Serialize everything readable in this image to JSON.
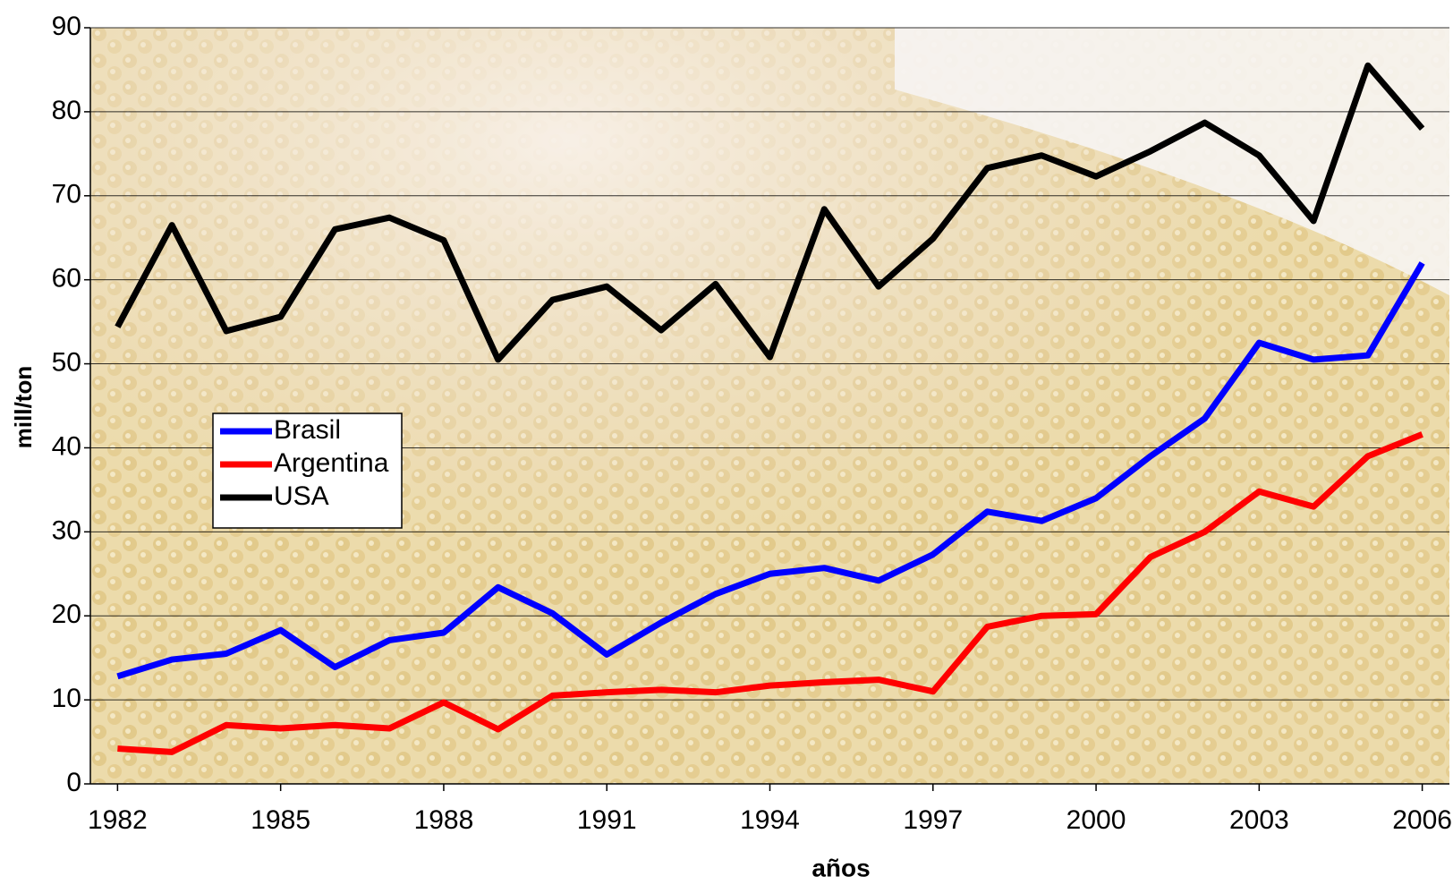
{
  "chart_data": {
    "type": "line",
    "y_label": "mill/ton",
    "x_label": "años",
    "x": [
      1982,
      1983,
      1984,
      1985,
      1986,
      1987,
      1988,
      1989,
      1990,
      1991,
      1992,
      1993,
      1994,
      1995,
      1996,
      1997,
      1998,
      1999,
      2000,
      2001,
      2002,
      2003,
      2004,
      2005,
      2006
    ],
    "xlim": [
      1981.5,
      2006.5
    ],
    "xticks": [
      1982,
      1985,
      1988,
      1991,
      1994,
      1997,
      2000,
      2003,
      2006
    ],
    "ylim": [
      0,
      90
    ],
    "yticks": [
      0,
      10,
      20,
      30,
      40,
      50,
      60,
      70,
      80,
      90
    ],
    "grid": true,
    "legend": "left",
    "series": [
      {
        "name": "Brasil",
        "color": "#0000ff",
        "values": [
          12.8,
          14.8,
          15.5,
          18.3,
          13.9,
          17.1,
          18.0,
          23.4,
          20.3,
          15.4,
          19.2,
          22.6,
          25.0,
          25.7,
          24.2,
          27.3,
          32.4,
          31.3,
          34.0,
          39.0,
          43.5,
          52.5,
          50.5,
          51.0,
          62.0
        ]
      },
      {
        "name": "Argentina",
        "color": "#ff0000",
        "values": [
          4.2,
          3.8,
          7.0,
          6.6,
          7.0,
          6.6,
          9.7,
          6.5,
          10.5,
          10.9,
          11.2,
          10.9,
          11.7,
          12.1,
          12.4,
          11.0,
          18.7,
          20.0,
          20.2,
          27.0,
          30.0,
          34.8,
          33.0,
          39.0,
          41.6
        ]
      },
      {
        "name": "USA",
        "color": "#000000",
        "values": [
          54.4,
          66.5,
          53.9,
          55.6,
          66.0,
          67.4,
          64.7,
          50.5,
          57.6,
          59.2,
          54.0,
          59.5,
          50.8,
          68.4,
          59.2,
          64.9,
          73.3,
          74.8,
          72.3,
          75.3,
          78.7,
          74.8,
          67.0,
          85.5,
          78.0
        ]
      }
    ]
  }
}
